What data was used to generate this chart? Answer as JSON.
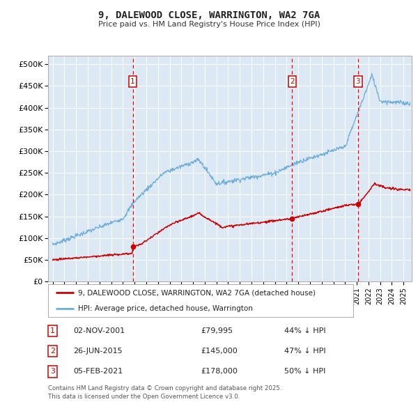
{
  "title_line1": "9, DALEWOOD CLOSE, WARRINGTON, WA2 7GA",
  "title_line2": "Price paid vs. HM Land Registry's House Price Index (HPI)",
  "background_color": "#dce9f5",
  "plot_bg_color": "#dce9f5",
  "fig_bg_color": "#ffffff",
  "red_line_color": "#cc0000",
  "blue_line_color": "#6aacda",
  "grid_color": "#ffffff",
  "vline_color": "#ff0000",
  "transactions": [
    {
      "num": 1,
      "date_x": 2001.84,
      "price": 79995,
      "label": "02-NOV-2001",
      "price_label": "£79,995",
      "note": "44% ↓ HPI"
    },
    {
      "num": 2,
      "date_x": 2015.48,
      "price": 145000,
      "label": "26-JUN-2015",
      "price_label": "£145,000",
      "note": "47% ↓ HPI"
    },
    {
      "num": 3,
      "date_x": 2021.09,
      "price": 178000,
      "label": "05-FEB-2021",
      "price_label": "£178,000",
      "note": "50% ↓ HPI"
    }
  ],
  "ylabel_ticks": [
    "£0",
    "£50K",
    "£100K",
    "£150K",
    "£200K",
    "£250K",
    "£300K",
    "£350K",
    "£400K",
    "£450K",
    "£500K"
  ],
  "ytick_vals": [
    0,
    50000,
    100000,
    150000,
    200000,
    250000,
    300000,
    350000,
    400000,
    450000,
    500000
  ],
  "ylim": [
    0,
    520000
  ],
  "xlim_start": 1994.6,
  "xlim_end": 2025.7,
  "xtick_years": [
    1995,
    1996,
    1997,
    1998,
    1999,
    2000,
    2001,
    2002,
    2003,
    2004,
    2005,
    2006,
    2007,
    2008,
    2009,
    2010,
    2011,
    2012,
    2013,
    2014,
    2015,
    2016,
    2017,
    2018,
    2019,
    2020,
    2021,
    2022,
    2023,
    2024,
    2025
  ],
  "legend_red_label": "9, DALEWOOD CLOSE, WARRINGTON, WA2 7GA (detached house)",
  "legend_blue_label": "HPI: Average price, detached house, Warrington",
  "footer_text": "Contains HM Land Registry data © Crown copyright and database right 2025.\nThis data is licensed under the Open Government Licence v3.0.",
  "box_color": "#cc0000",
  "box_text_color": "#cc0000"
}
